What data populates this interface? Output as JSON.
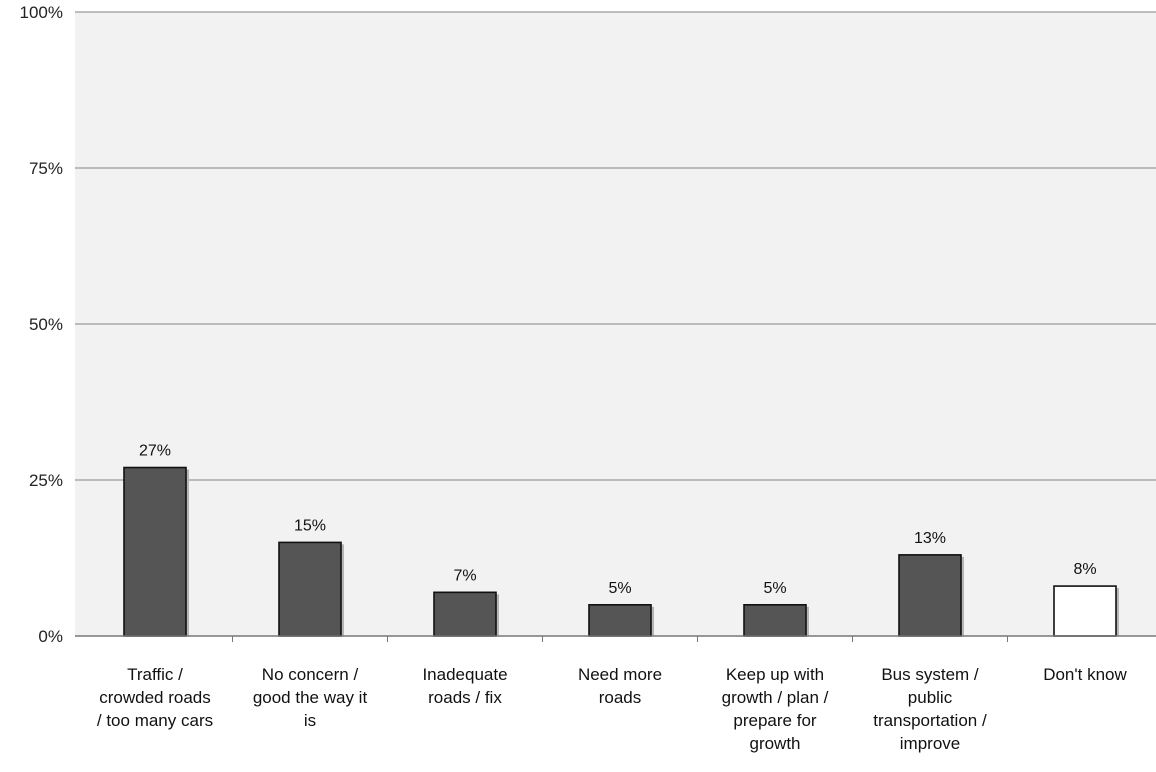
{
  "chart_data": {
    "type": "bar",
    "title": "",
    "xlabel": "",
    "ylabel": "",
    "categories": [
      [
        "Traffic /",
        "crowded roads",
        "/ too many cars"
      ],
      [
        "No concern /",
        "good the way it",
        "is"
      ],
      [
        "Inadequate",
        "roads / fix"
      ],
      [
        "Need more",
        "roads"
      ],
      [
        "Keep up with",
        "growth / plan /",
        "prepare for",
        "growth"
      ],
      [
        "Bus system /",
        "public",
        "transportation /",
        "improve"
      ],
      [
        "Don't know"
      ]
    ],
    "values": [
      27,
      15,
      7,
      5,
      5,
      13,
      8
    ],
    "data_labels": [
      "27%",
      "15%",
      "7%",
      "5%",
      "5%",
      "13%",
      "8%"
    ],
    "bar_colors": [
      "#555555",
      "#555555",
      "#555555",
      "#555555",
      "#555555",
      "#555555",
      "#ffffff"
    ],
    "ylim": [
      0,
      100
    ],
    "yticks": [
      0,
      25,
      50,
      75,
      100
    ],
    "ytick_labels": [
      "0%",
      "25%",
      "50%",
      "75%",
      "100%"
    ],
    "grid": true,
    "legend": "none"
  },
  "colors": {
    "plot_background": "#f2f2f2",
    "gridline": "#9a9a9a",
    "axis": "#777777",
    "bar_edge": "#111111",
    "bar_shadow": "#b5b5b5"
  }
}
